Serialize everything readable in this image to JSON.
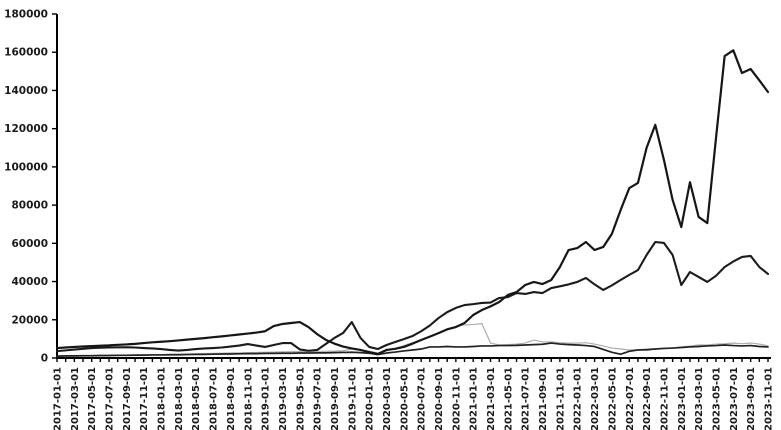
{
  "chart_data": {
    "type": "line",
    "title": "",
    "xlabel": "",
    "ylabel": "",
    "grid": false,
    "legend_position": "none",
    "ylim": [
      0,
      180000
    ],
    "y_tick_labels": [
      "0",
      "20000",
      "40000",
      "60000",
      "80000",
      "100000",
      "120000",
      "140000",
      "160000",
      "180000"
    ],
    "x_tick_labels": [
      "2017-01-01",
      "2017-03-01",
      "2017-05-01",
      "2017-07-01",
      "2017-09-01",
      "2017-11-01",
      "2018-01-01",
      "2018-03-01",
      "2018-05-01",
      "2018-07-01",
      "2018-09-01",
      "2018-11-01",
      "2019-01-01",
      "2019-03-01",
      "2019-05-01",
      "2019-07-01",
      "2019-09-01",
      "2019-11-01",
      "2020-01-01",
      "2020-03-01",
      "2020-05-01",
      "2020-07-01",
      "2020-09-01",
      "2020-11-01",
      "2021-01-01",
      "2021-03-01",
      "2021-05-01",
      "2021-07-01",
      "2021-09-01",
      "2021-11-01",
      "2022-01-01",
      "2022-03-01",
      "2022-05-01",
      "2022-07-01",
      "2022-09-01",
      "2022-11-01",
      "2023-01-01",
      "2023-03-01",
      "2023-05-01",
      "2023-07-01",
      "2023-09-01",
      "2023-11-01"
    ],
    "x_months_total": 83,
    "axis_color": "#000000",
    "series": [
      {
        "name": "series-4-light",
        "color": "#adadad",
        "width": 1.2,
        "values": [
          800,
          900,
          900,
          1000,
          1000,
          1100,
          1200,
          1300,
          1400,
          1500,
          1600,
          1700,
          1800,
          1900,
          2000,
          2100,
          2200,
          2300,
          2400,
          2500,
          2600,
          2700,
          2800,
          2900,
          3000,
          3100,
          3200,
          3300,
          3400,
          3400,
          3500,
          3500,
          3600,
          3800,
          4700,
          4200,
          3500,
          2600,
          3700,
          5000,
          6500,
          8000,
          9500,
          11000,
          13000,
          15000,
          16500,
          17300,
          17500,
          18000,
          7800,
          6800,
          7000,
          7300,
          7800,
          9400,
          8400,
          8400,
          8000,
          7800,
          7800,
          8000,
          7300,
          6300,
          5200,
          4700,
          4200,
          4400,
          3900,
          4700,
          5200,
          5200,
          5800,
          6300,
          6800,
          6800,
          7300,
          7500,
          7800,
          7500,
          7800,
          7300,
          6300
        ]
      },
      {
        "name": "series-3-low-dark",
        "color": "#222222",
        "width": 1.7,
        "values": [
          1000,
          1100,
          1100,
          1200,
          1200,
          1300,
          1300,
          1400,
          1400,
          1500,
          1500,
          1600,
          1600,
          1700,
          1700,
          1800,
          1900,
          1900,
          2000,
          2100,
          2100,
          2200,
          2300,
          2300,
          2400,
          2400,
          2500,
          2500,
          2600,
          2600,
          2700,
          2700,
          2800,
          2900,
          3000,
          2800,
          2500,
          1800,
          2600,
          3100,
          3700,
          4200,
          4700,
          5800,
          5800,
          6000,
          5800,
          5800,
          6000,
          6300,
          6300,
          6500,
          6500,
          6600,
          6800,
          7000,
          7200,
          7800,
          7300,
          7000,
          6800,
          6500,
          6000,
          4500,
          3000,
          2000,
          3500,
          4200,
          4400,
          4700,
          5000,
          5200,
          5500,
          5800,
          6000,
          6300,
          6500,
          6800,
          6500,
          6300,
          6500,
          6000,
          5800
        ]
      },
      {
        "name": "series-2-secondary-dark",
        "color": "#1b1b1b",
        "width": 2.1,
        "values": [
          3600,
          4000,
          4400,
          4800,
          5200,
          5400,
          5500,
          5600,
          5600,
          5500,
          5200,
          5000,
          4700,
          4200,
          3900,
          4200,
          4700,
          5000,
          5200,
          5500,
          6000,
          6500,
          7300,
          6500,
          5800,
          6800,
          7800,
          7800,
          4500,
          3800,
          4200,
          7300,
          10500,
          13100,
          18800,
          10500,
          5800,
          4700,
          6800,
          8400,
          9900,
          11500,
          14000,
          17000,
          20900,
          24000,
          26200,
          27700,
          28200,
          28800,
          29000,
          31400,
          31900,
          34000,
          33500,
          34500,
          34000,
          36600,
          37500,
          38500,
          39800,
          41900,
          38500,
          35600,
          38000,
          40800,
          43500,
          46000,
          53900,
          60700,
          60200,
          53900,
          38200,
          45000,
          42400,
          39800,
          43000,
          47600,
          50500,
          52900,
          53400,
          47600,
          44000
        ]
      },
      {
        "name": "series-1-primary-dark",
        "color": "#161616",
        "width": 2.2,
        "values": [
          5200,
          5500,
          5800,
          6000,
          6200,
          6400,
          6600,
          6900,
          7100,
          7400,
          7800,
          8200,
          8500,
          8800,
          9200,
          9600,
          10000,
          10400,
          10900,
          11300,
          11800,
          12300,
          12800,
          13300,
          14000,
          16700,
          17800,
          18300,
          18800,
          16200,
          12500,
          9500,
          7500,
          6000,
          5000,
          4200,
          3100,
          2100,
          4200,
          4800,
          5800,
          7500,
          9400,
          11200,
          13000,
          15000,
          16200,
          18300,
          22500,
          25100,
          27000,
          29300,
          33000,
          34500,
          38200,
          39800,
          38700,
          40800,
          47600,
          56500,
          57500,
          60700,
          56500,
          58100,
          65000,
          77400,
          88900,
          91600,
          110000,
          122000,
          103600,
          82700,
          68500,
          92000,
          73800,
          70600,
          115000,
          158000,
          161000,
          149100,
          151200,
          145300,
          139200
        ]
      }
    ]
  }
}
